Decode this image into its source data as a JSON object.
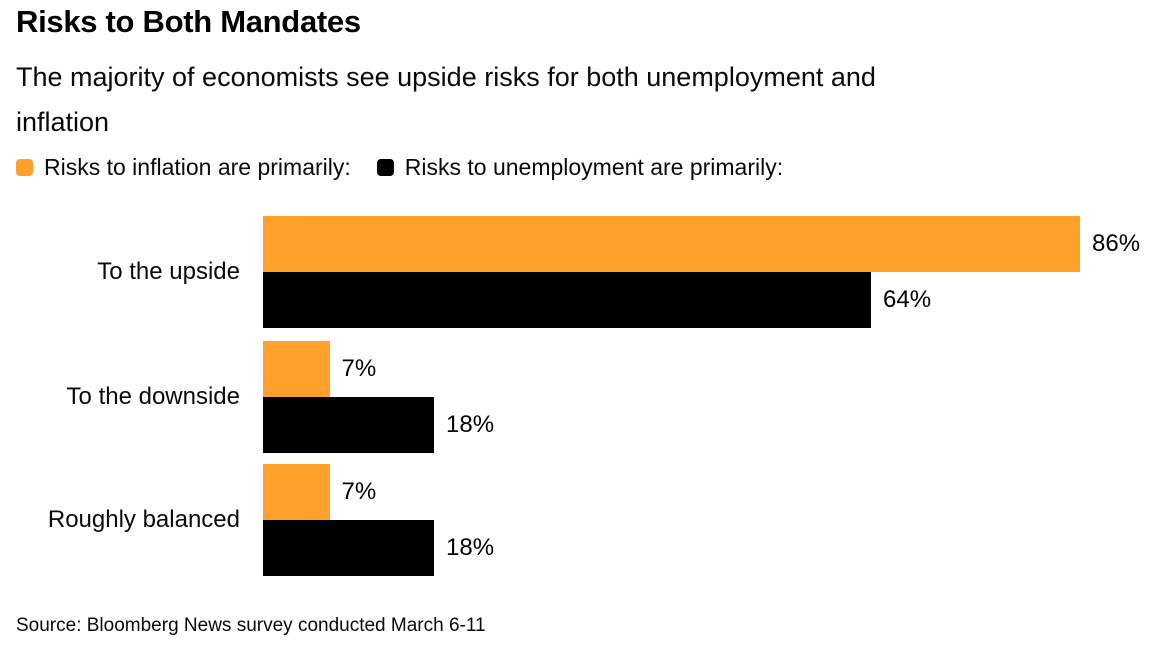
{
  "header": {
    "title": "Risks to Both Mandates",
    "subtitle_line1": "The majority of economists see upside risks for both unemployment and",
    "subtitle_line2": "inflation"
  },
  "colors": {
    "inflation_orange": "#FFA12B",
    "unemployment_black": "#000000",
    "background": "#FFFFFF"
  },
  "chart_data": {
    "type": "bar",
    "orientation": "horizontal",
    "title": "Risks to Both Mandates",
    "subtitle": "The majority of economists see upside risks for both unemployment and inflation",
    "categories": [
      "To the upside",
      "To the downside",
      "Roughly balanced"
    ],
    "series": [
      {
        "name": "Risks to inflation are primarily:",
        "color": "#FFA12B",
        "values": [
          86,
          7,
          7
        ],
        "labels": [
          "86%",
          "7%",
          "7%"
        ]
      },
      {
        "name": "Risks to unemployment are primarily:",
        "color": "#000000",
        "values": [
          64,
          18,
          18
        ],
        "labels": [
          "64%",
          "18%",
          "18%"
        ]
      }
    ],
    "value_suffix": "%",
    "xlim": [
      0,
      90
    ],
    "grid": false,
    "axis_lines": false,
    "legend_position": "top-left",
    "value_labels_position": "right-of-bar"
  },
  "footer": {
    "source": "Source: Bloomberg News survey conducted March 6-11"
  }
}
